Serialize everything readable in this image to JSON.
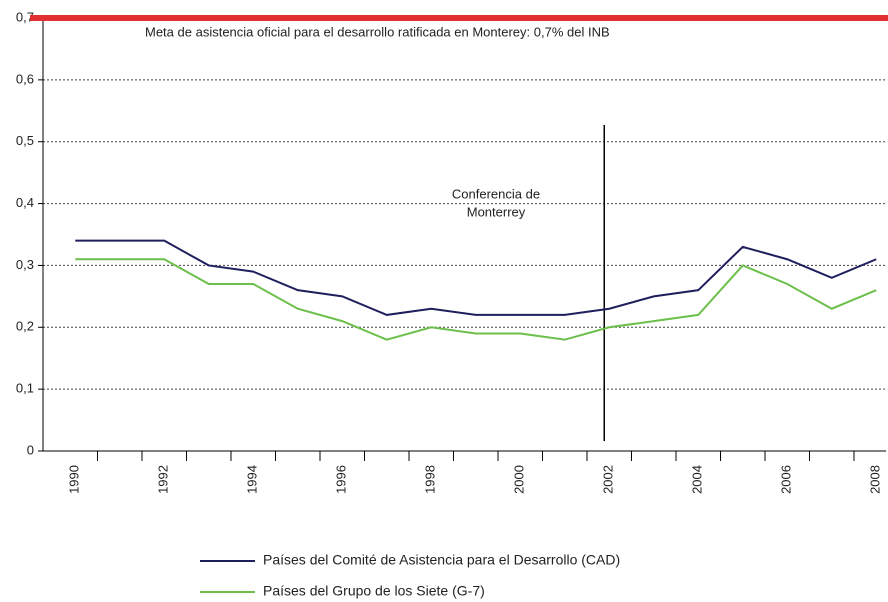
{
  "chart_data": {
    "type": "line",
    "categories": [
      "1990",
      null,
      "1992",
      null,
      "1994",
      null,
      "1996",
      null,
      "1998",
      null,
      "2000",
      null,
      "2002",
      null,
      "2004",
      null,
      "2006",
      null,
      "2008"
    ],
    "series": [
      {
        "name": "Países del Comité de Asistencia para el Desarrollo (CAD)",
        "color": "#1f1f5e",
        "values": [
          0.34,
          0.34,
          0.34,
          0.3,
          0.29,
          0.26,
          0.25,
          0.22,
          0.23,
          0.22,
          0.22,
          0.22,
          0.23,
          0.25,
          0.26,
          0.33,
          0.31,
          0.28,
          0.31
        ]
      },
      {
        "name": "Países del Grupo de los Siete (G-7)",
        "color": "#6cbf4a",
        "values": [
          0.31,
          0.31,
          0.31,
          0.27,
          0.27,
          0.23,
          0.21,
          0.18,
          0.2,
          0.19,
          0.19,
          0.18,
          0.2,
          0.21,
          0.22,
          0.3,
          0.27,
          0.23,
          0.26
        ]
      }
    ],
    "ylim": [
      0,
      0.7
    ],
    "yticks": [
      0,
      {
        "value": 0.1,
        "label": "0,1"
      },
      {
        "value": 0.2,
        "label": "0,2"
      },
      {
        "value": 0.3,
        "label": "0,3"
      },
      {
        "value": 0.4,
        "label": "0,4"
      },
      {
        "value": 0.5,
        "label": "0,5"
      },
      {
        "value": 0.6,
        "label": "0,6"
      },
      {
        "value": 0.7,
        "label": "0,7"
      }
    ],
    "grid": true,
    "legend": "bottom",
    "reference_line": {
      "value": 0.7,
      "label": "Meta de asistencia oficial para el desarrollo ratificada en Monterey: 0,7% del INB",
      "color": "#e03030"
    },
    "annotation": {
      "category": "2002",
      "lines": [
        "Conferencia de",
        "Monterrey"
      ]
    }
  }
}
